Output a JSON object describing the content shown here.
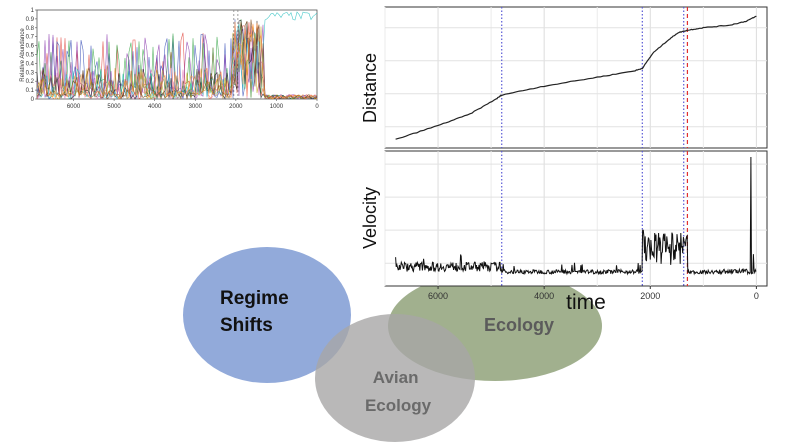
{
  "venn": {
    "circles": [
      {
        "label_lines": [
          "Regime",
          "Shifts"
        ],
        "color": "#7f9bd4",
        "text_color": "#111111"
      },
      {
        "label_lines": [
          "Ecology"
        ],
        "color": "#8a9c72",
        "text_color": "#555555"
      },
      {
        "label_lines": [
          "Avian",
          "Ecology"
        ],
        "color": "#a7a6a6",
        "text_color": "#666666"
      }
    ]
  },
  "chart_data": [
    {
      "type": "line",
      "ylabel": "Relative Abundance",
      "xlabel": "",
      "x_ticks": [
        6000,
        5000,
        4000,
        3000,
        2000,
        1000,
        0
      ],
      "y_ticks": [
        0,
        0.1,
        0.2,
        0.3,
        0.4,
        0.5,
        0.6,
        0.7,
        0.8,
        0.9,
        1
      ],
      "xlim": [
        6900,
        0
      ],
      "ylim": [
        0,
        1
      ],
      "series_colors": [
        "#e0473e",
        "#3c52b8",
        "#3aa84a",
        "#8e3fb0",
        "#e37bb8",
        "#1a1a1a",
        "#2bbfbf",
        "#c7a21a",
        "#7a4a1a",
        "#ff8c3a"
      ]
    },
    {
      "type": "line",
      "ylabel": "Distance",
      "xlabel": "",
      "xlim": [
        7000,
        -200
      ],
      "x": [
        6800,
        6000,
        5400,
        4900,
        4800,
        4000,
        3000,
        2300,
        2150,
        1950,
        1700,
        1480,
        1300,
        1000,
        500,
        200,
        0
      ],
      "y": [
        0.02,
        0.13,
        0.22,
        0.34,
        0.37,
        0.44,
        0.51,
        0.56,
        0.58,
        0.7,
        0.79,
        0.86,
        0.88,
        0.9,
        0.92,
        0.95,
        0.99
      ],
      "vlines": [
        {
          "x": 4800,
          "color": "#5a5ad6",
          "style": "dotted"
        },
        {
          "x": 2150,
          "color": "#5a5ad6",
          "style": "dotted"
        },
        {
          "x": 1370,
          "color": "#5a5ad6",
          "style": "dotted"
        },
        {
          "x": 1300,
          "color": "#e03030",
          "style": "dashed"
        }
      ]
    },
    {
      "type": "line",
      "ylabel": "Velocity",
      "xlabel": "time",
      "xlim": [
        7000,
        -200
      ],
      "x_ticks": [
        6000,
        4000,
        2000,
        0
      ],
      "vlines": [
        {
          "x": 4800,
          "color": "#5a5ad6",
          "style": "dotted"
        },
        {
          "x": 2150,
          "color": "#5a5ad6",
          "style": "dotted"
        },
        {
          "x": 1370,
          "color": "#5a5ad6",
          "style": "dotted"
        },
        {
          "x": 1300,
          "color": "#e03030",
          "style": "dashed"
        }
      ]
    }
  ]
}
